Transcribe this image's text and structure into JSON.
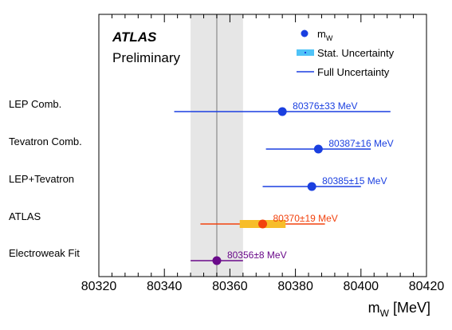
{
  "chart_data": {
    "type": "scatter",
    "xlabel_main": "m",
    "xlabel_sub": "W",
    "xlabel_unit": "[MeV]",
    "xlim": [
      80320,
      80420
    ],
    "x_ticks": [
      80320,
      80340,
      80360,
      80380,
      80400,
      80420
    ],
    "experiment": "ATLAS",
    "status": "Preliminary",
    "reference_band": {
      "center": 80356,
      "low": 80348,
      "high": 80364,
      "color": "#e6e6e6",
      "line_color": "#9e9e9e"
    },
    "legend": {
      "marker_main": "m",
      "marker_sub": "W",
      "stat_label": "Stat. Uncertainty",
      "full_label": "Full Uncertainty",
      "placement": "top-right"
    },
    "points": [
      {
        "label": "LEP Comb.",
        "value": 80376,
        "full_unc": 33,
        "stat_unc": null,
        "text": "80376±33 MeV",
        "color": "#1a3fe0",
        "stat_color": null
      },
      {
        "label": "Tevatron Comb.",
        "value": 80387,
        "full_unc": 16,
        "stat_unc": null,
        "text": "80387±16 MeV",
        "color": "#1a3fe0",
        "stat_color": null
      },
      {
        "label": "LEP+Tevatron",
        "value": 80385,
        "full_unc": 15,
        "stat_unc": null,
        "text": "80385±15 MeV",
        "color": "#1a3fe0",
        "stat_color": null
      },
      {
        "label": "ATLAS",
        "value": 80370,
        "full_unc": 19,
        "stat_unc": 7,
        "text": "80370±19 MeV",
        "color": "#f2420e",
        "stat_color": "#f7bd2a"
      },
      {
        "label": "Electroweak Fit",
        "value": 80356,
        "full_unc": 8,
        "stat_unc": null,
        "text": "80356±8 MeV",
        "color": "#6a0a8a",
        "stat_color": null
      }
    ],
    "colors": {
      "legend_marker": "#1a3fe0",
      "legend_stat": "#4fc3f7",
      "legend_line": "#1a3fe0"
    }
  }
}
